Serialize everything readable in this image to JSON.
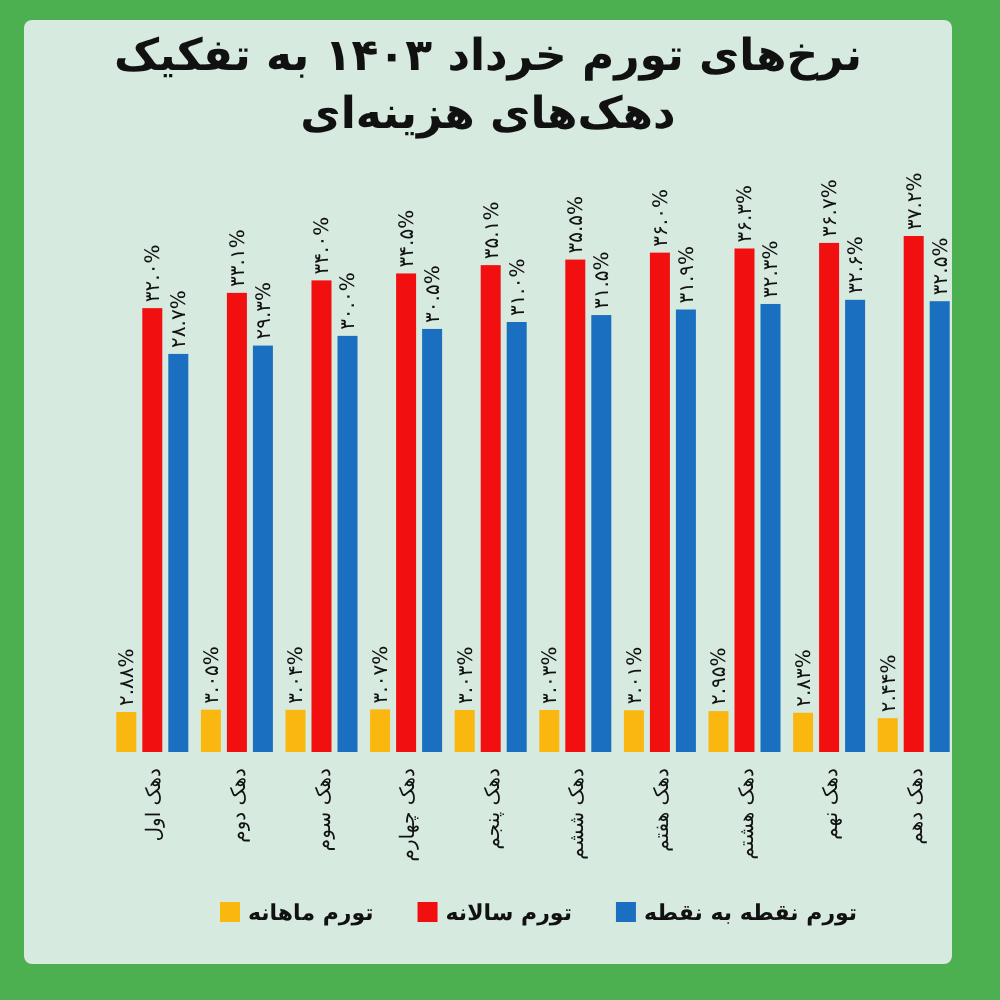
{
  "chart_data": {
    "type": "bar",
    "title": "نرخ‌های تورم خرداد ۱۴۰۳ به تفکیک دهک‌های هزینه‌ای",
    "categories": [
      "دهک اول",
      "دهک دوم",
      "دهک سوم",
      "دهک چهارم",
      "دهک پنجم",
      "دهک ششم",
      "دهک هفتم",
      "دهک هشتم",
      "دهک نهم",
      "دهک دهم"
    ],
    "series": [
      {
        "name": "تورم ماهانه",
        "color": "#f9b70f",
        "values": [
          2.88,
          3.05,
          3.04,
          3.07,
          3.03,
          3.03,
          3.01,
          2.95,
          2.83,
          2.44
        ],
        "value_labels": [
          "۲.۸۸%",
          "۳.۰۵%",
          "۳.۰۴%",
          "۳.۰۷%",
          "۳.۰۳%",
          "۳.۰۳%",
          "۳.۰۱%",
          "۲.۹۵%",
          "۲.۸۳%",
          "۲.۴۴%"
        ]
      },
      {
        "name": "تورم سالانه",
        "color": "#f20f0f",
        "values": [
          32.0,
          33.1,
          34.0,
          34.5,
          35.1,
          35.5,
          36.0,
          36.3,
          36.7,
          37.2
        ],
        "value_labels": [
          "۳۲.۰%",
          "۳۳.۱%",
          "۳۴.۰%",
          "۳۴.۵%",
          "۳۵.۱%",
          "۳۵.۵%",
          "۳۶.۰%",
          "۳۶.۳%",
          "۳۶.۷%",
          "۳۷.۲%"
        ]
      },
      {
        "name": "تورم نقطه به نقطه",
        "color": "#1a6fc0",
        "values": [
          28.7,
          29.3,
          30.0,
          30.5,
          31.0,
          31.5,
          31.9,
          32.3,
          32.6,
          32.5
        ],
        "value_labels": [
          "۲۸.۷%",
          "۲۹.۳%",
          "۳۰.۰%",
          "۳۰.۵%",
          "۳۱.۰%",
          "۳۱.۵%",
          "۳۱.۹%",
          "۳۲.۳%",
          "۳۲.۶%",
          "۳۲.۵%"
        ]
      }
    ],
    "legend": "bottom"
  }
}
